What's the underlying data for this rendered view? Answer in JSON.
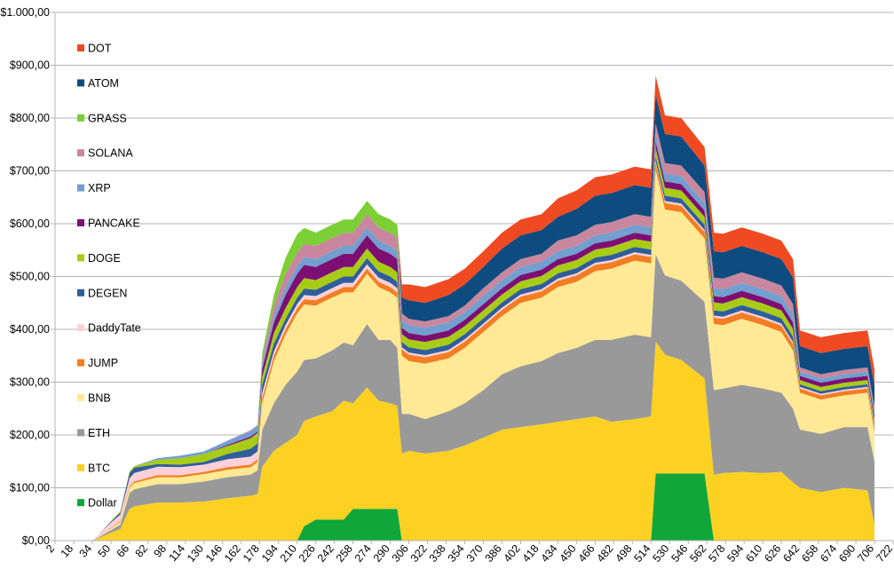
{
  "chart_data": {
    "type": "area",
    "stacked": true,
    "title": "",
    "xlabel": "",
    "ylabel": "",
    "ylim": [
      0,
      1000
    ],
    "xlim": [
      2,
      722
    ],
    "y_ticks": [
      "$0,00",
      "$100,00",
      "$200,00",
      "$300,00",
      "$400,00",
      "$500,00",
      "$600,00",
      "$700,00",
      "$800,00",
      "$900,00",
      "$1.000,00"
    ],
    "x_ticks": [
      "2",
      "18",
      "34",
      "50",
      "66",
      "82",
      "98",
      "114",
      "130",
      "146",
      "162",
      "178",
      "194",
      "210",
      "226",
      "242",
      "258",
      "274",
      "290",
      "306",
      "322",
      "338",
      "354",
      "370",
      "386",
      "402",
      "418",
      "434",
      "450",
      "466",
      "482",
      "498",
      "514",
      "530",
      "546",
      "562",
      "578",
      "594",
      "610",
      "626",
      "642",
      "658",
      "674",
      "690",
      "706",
      "722"
    ],
    "grid": true,
    "legend_position": "left",
    "x": [
      2,
      34,
      40,
      50,
      58,
      66,
      70,
      90,
      110,
      130,
      150,
      170,
      176,
      180,
      190,
      200,
      210,
      216,
      226,
      240,
      250,
      258,
      270,
      280,
      290,
      296,
      300,
      306,
      320,
      340,
      354,
      370,
      386,
      402,
      420,
      434,
      450,
      466,
      480,
      500,
      514,
      518,
      526,
      540,
      560,
      568,
      576,
      592,
      610,
      626,
      636,
      642,
      660,
      680,
      700,
      706
    ],
    "series": [
      {
        "name": "Dollar",
        "color": "#11a63a",
        "values": [
          0,
          0,
          0,
          0,
          0,
          0,
          0,
          0,
          0,
          0,
          0,
          0,
          0,
          0,
          0,
          0,
          0,
          27,
          40,
          40,
          40,
          60,
          60,
          60,
          60,
          60,
          0,
          0,
          0,
          0,
          0,
          0,
          0,
          0,
          0,
          0,
          0,
          0,
          0,
          0,
          0,
          127,
          127,
          127,
          127,
          0,
          0,
          0,
          0,
          0,
          0,
          0,
          0,
          0,
          0,
          0
        ]
      },
      {
        "name": "BTC",
        "color": "#fdd122",
        "values": [
          0,
          0,
          5,
          15,
          22,
          60,
          65,
          72,
          72,
          74,
          80,
          85,
          88,
          140,
          170,
          185,
          200,
          200,
          195,
          205,
          225,
          200,
          230,
          205,
          200,
          195,
          165,
          170,
          165,
          170,
          180,
          195,
          210,
          215,
          220,
          225,
          230,
          235,
          225,
          230,
          235,
          250,
          225,
          215,
          180,
          125,
          128,
          130,
          128,
          130,
          110,
          100,
          92,
          100,
          95,
          30
        ]
      },
      {
        "name": "ETH",
        "color": "#999999",
        "values": [
          0,
          0,
          2,
          5,
          8,
          30,
          32,
          35,
          35,
          38,
          40,
          40,
          45,
          70,
          90,
          110,
          120,
          115,
          110,
          115,
          110,
          110,
          120,
          115,
          120,
          110,
          75,
          70,
          65,
          75,
          80,
          90,
          105,
          115,
          120,
          130,
          135,
          145,
          155,
          160,
          150,
          165,
          150,
          150,
          145,
          160,
          160,
          165,
          160,
          150,
          140,
          110,
          110,
          115,
          120,
          120
        ]
      },
      {
        "name": "BNB",
        "color": "#ffe994",
        "values": [
          0,
          0,
          1,
          3,
          5,
          10,
          12,
          13,
          13,
          14,
          14,
          14,
          16,
          50,
          80,
          95,
          110,
          105,
          100,
          100,
          95,
          100,
          95,
          100,
          90,
          95,
          110,
          100,
          105,
          100,
          105,
          110,
          110,
          120,
          120,
          125,
          125,
          130,
          135,
          140,
          140,
          160,
          125,
          130,
          120,
          125,
          120,
          125,
          120,
          115,
          110,
          70,
          65,
          60,
          65,
          55
        ]
      },
      {
        "name": "JUMP",
        "color": "#f37d22",
        "values": [
          0,
          0,
          0,
          1,
          2,
          3,
          3,
          4,
          4,
          4,
          5,
          5,
          5,
          10,
          10,
          10,
          10,
          10,
          10,
          10,
          10,
          10,
          10,
          10,
          10,
          10,
          12,
          12,
          12,
          12,
          12,
          12,
          12,
          12,
          12,
          12,
          12,
          12,
          12,
          12,
          12,
          12,
          12,
          12,
          12,
          12,
          12,
          12,
          12,
          12,
          12,
          8,
          8,
          8,
          8,
          8
        ]
      },
      {
        "name": "DaddyTate",
        "color": "#ffd0d8",
        "values": [
          0,
          0,
          5,
          10,
          12,
          15,
          16,
          16,
          15,
          14,
          15,
          15,
          15,
          10,
          8,
          8,
          8,
          8,
          8,
          8,
          8,
          8,
          8,
          8,
          8,
          8,
          4,
          4,
          4,
          4,
          4,
          4,
          4,
          4,
          4,
          4,
          4,
          4,
          4,
          4,
          4,
          4,
          4,
          4,
          4,
          4,
          4,
          4,
          4,
          4,
          4,
          3,
          3,
          3,
          3,
          3
        ]
      },
      {
        "name": "DEGEN",
        "color": "#2f5e9c",
        "values": [
          0,
          0,
          0,
          2,
          4,
          10,
          10,
          5,
          5,
          5,
          10,
          15,
          15,
          15,
          15,
          12,
          12,
          12,
          12,
          12,
          12,
          12,
          12,
          12,
          12,
          12,
          10,
          10,
          10,
          10,
          10,
          10,
          10,
          10,
          10,
          10,
          10,
          10,
          10,
          10,
          10,
          10,
          10,
          10,
          10,
          10,
          10,
          10,
          10,
          10,
          10,
          5,
          5,
          5,
          5,
          5
        ]
      },
      {
        "name": "DOGE",
        "color": "#a8cc16",
        "values": [
          0,
          0,
          0,
          1,
          2,
          3,
          3,
          8,
          12,
          15,
          15,
          20,
          20,
          15,
          20,
          20,
          20,
          20,
          18,
          18,
          18,
          18,
          18,
          18,
          18,
          18,
          15,
          15,
          15,
          15,
          15,
          15,
          15,
          15,
          15,
          15,
          15,
          15,
          15,
          15,
          15,
          15,
          15,
          15,
          15,
          15,
          15,
          15,
          15,
          15,
          15,
          8,
          8,
          8,
          8,
          8
        ]
      },
      {
        "name": "PANCAKE",
        "color": "#7e0f72",
        "values": [
          0,
          0,
          0,
          0,
          0,
          0,
          0,
          0,
          0,
          0,
          2,
          3,
          3,
          15,
          20,
          25,
          25,
          25,
          25,
          25,
          25,
          25,
          25,
          25,
          25,
          25,
          12,
          12,
          12,
          12,
          12,
          12,
          12,
          12,
          12,
          12,
          12,
          12,
          12,
          12,
          12,
          12,
          12,
          12,
          12,
          12,
          12,
          12,
          12,
          12,
          12,
          8,
          8,
          8,
          8,
          8
        ]
      },
      {
        "name": "XRP",
        "color": "#729fcf",
        "values": [
          0,
          0,
          0,
          0,
          0,
          0,
          0,
          3,
          5,
          5,
          8,
          10,
          10,
          10,
          12,
          15,
          15,
          15,
          15,
          15,
          15,
          15,
          15,
          15,
          15,
          15,
          15,
          15,
          15,
          15,
          15,
          15,
          15,
          15,
          15,
          15,
          15,
          15,
          15,
          15,
          15,
          15,
          15,
          15,
          15,
          15,
          15,
          15,
          15,
          15,
          15,
          8,
          8,
          8,
          8,
          8
        ]
      },
      {
        "name": "SOLANA",
        "color": "#c8879e",
        "values": [
          0,
          0,
          0,
          0,
          0,
          0,
          0,
          0,
          0,
          0,
          0,
          2,
          2,
          10,
          20,
          25,
          25,
          25,
          25,
          25,
          25,
          25,
          25,
          25,
          25,
          25,
          12,
          12,
          12,
          12,
          12,
          15,
          15,
          15,
          15,
          20,
          20,
          20,
          20,
          20,
          20,
          20,
          20,
          20,
          20,
          20,
          20,
          20,
          20,
          20,
          20,
          8,
          8,
          8,
          8,
          8
        ]
      },
      {
        "name": "GRASS",
        "color": "#7ccf35",
        "values": [
          0,
          0,
          0,
          0,
          0,
          0,
          0,
          0,
          0,
          0,
          0,
          0,
          0,
          10,
          20,
          30,
          35,
          30,
          25,
          25,
          25,
          25,
          25,
          25,
          25,
          25,
          0,
          0,
          0,
          0,
          0,
          0,
          0,
          0,
          0,
          0,
          0,
          0,
          0,
          0,
          0,
          0,
          0,
          0,
          0,
          0,
          0,
          0,
          0,
          0,
          0,
          0,
          0,
          0,
          0,
          0
        ]
      },
      {
        "name": "ATOM",
        "color": "#0e4b7f",
        "values": [
          0,
          0,
          0,
          0,
          0,
          0,
          0,
          0,
          0,
          0,
          0,
          0,
          0,
          0,
          0,
          0,
          0,
          0,
          0,
          0,
          0,
          0,
          0,
          0,
          0,
          0,
          30,
          35,
          35,
          40,
          40,
          40,
          45,
          45,
          45,
          45,
          50,
          55,
          55,
          55,
          55,
          55,
          55,
          55,
          50,
          50,
          50,
          50,
          50,
          50,
          50,
          40,
          40,
          40,
          40,
          40
        ]
      },
      {
        "name": "DOT",
        "color": "#f04a22",
        "values": [
          0,
          0,
          0,
          0,
          0,
          0,
          0,
          0,
          0,
          0,
          0,
          0,
          0,
          0,
          0,
          0,
          0,
          0,
          0,
          0,
          0,
          0,
          0,
          0,
          0,
          0,
          25,
          30,
          30,
          30,
          30,
          30,
          30,
          30,
          30,
          35,
          35,
          35,
          35,
          35,
          35,
          35,
          35,
          35,
          35,
          35,
          35,
          35,
          35,
          35,
          35,
          30,
          30,
          30,
          30,
          30
        ]
      }
    ]
  }
}
